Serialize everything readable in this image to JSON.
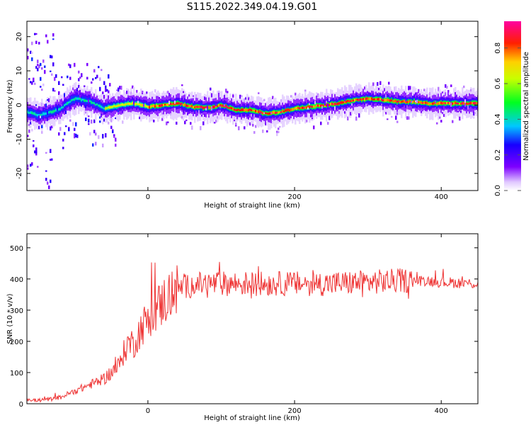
{
  "title": "S115.2022.349.04.19.G01",
  "chart_data": [
    {
      "type": "heatmap",
      "xlabel": "Height of straight line (km)",
      "ylabel": "Frequency (Hz)",
      "xlim": [
        -165,
        450
      ],
      "ylim": [
        -25,
        24.5
      ],
      "x_ticks": [
        0,
        200,
        400
      ],
      "y_ticks": [
        -20,
        -10,
        0,
        10,
        20
      ],
      "colorbar": {
        "label": "Normalized spectral amplitude",
        "range": [
          0,
          0.95
        ],
        "ticks": [
          0.0,
          0.2,
          0.4,
          0.6,
          0.8
        ]
      },
      "ridge": {
        "x": [
          -165,
          -150,
          -140,
          -120,
          -100,
          -80,
          -60,
          -40,
          -20,
          0,
          20,
          40,
          60,
          80,
          100,
          120,
          140,
          160,
          180,
          200,
          220,
          240,
          260,
          280,
          300,
          320,
          340,
          360,
          380,
          400,
          420,
          450
        ],
        "frequency": [
          -2,
          -3,
          -2.5,
          -1,
          2,
          1,
          -1,
          0,
          0.5,
          -0.5,
          0,
          0.5,
          -0.5,
          -0.8,
          0,
          -1.5,
          -1.5,
          -2.5,
          -2,
          -1,
          -0.5,
          0,
          0.5,
          1.5,
          1.8,
          1.5,
          1,
          1,
          0.5,
          0.5,
          0.5,
          0.5
        ]
      }
    },
    {
      "type": "line",
      "xlabel": "Height of straight line (km)",
      "ylabel": "SNR (10 * v/v)",
      "xlim": [
        -165,
        450
      ],
      "ylim": [
        0,
        545
      ],
      "x_ticks": [
        0,
        200,
        400
      ],
      "y_ticks": [
        0,
        100,
        200,
        300,
        400,
        500
      ],
      "color": "#ee3333",
      "series": [
        {
          "x": [
            -165,
            -140,
            -120,
            -100,
            -80,
            -60,
            -50,
            -40,
            -30,
            -25,
            -20,
            -15,
            -10,
            -5,
            0,
            10,
            20,
            30,
            40,
            60,
            80,
            100,
            150,
            200,
            250,
            300,
            350,
            380,
            400,
            450
          ],
          "values": [
            10,
            12,
            20,
            40,
            60,
            80,
            100,
            120,
            180,
            200,
            190,
            210,
            240,
            255,
            275,
            300,
            325,
            350,
            370,
            380,
            385,
            385,
            385,
            385,
            385,
            390,
            395,
            395,
            390,
            385
          ]
        }
      ]
    }
  ]
}
